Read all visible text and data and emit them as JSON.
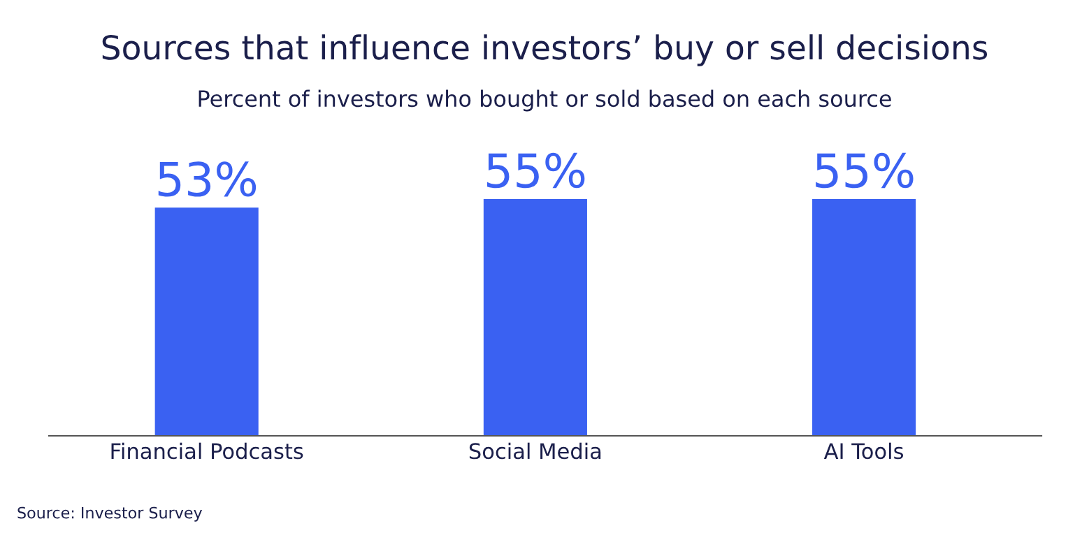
{
  "chart_data": {
    "type": "bar",
    "title": "Sources that influence investors’ buy or sell decisions",
    "subtitle": "Percent of investors who bought or sold based on each source",
    "categories": [
      "Financial Podcasts",
      "Social Media",
      "AI Tools"
    ],
    "values": [
      53,
      55,
      55
    ],
    "value_labels": [
      "53%",
      "55%",
      "55%"
    ],
    "color": "#3a61f2",
    "tick_labels": "x",
    "grid": false,
    "annotations": [
      "Source: Investor Survey"
    ]
  }
}
